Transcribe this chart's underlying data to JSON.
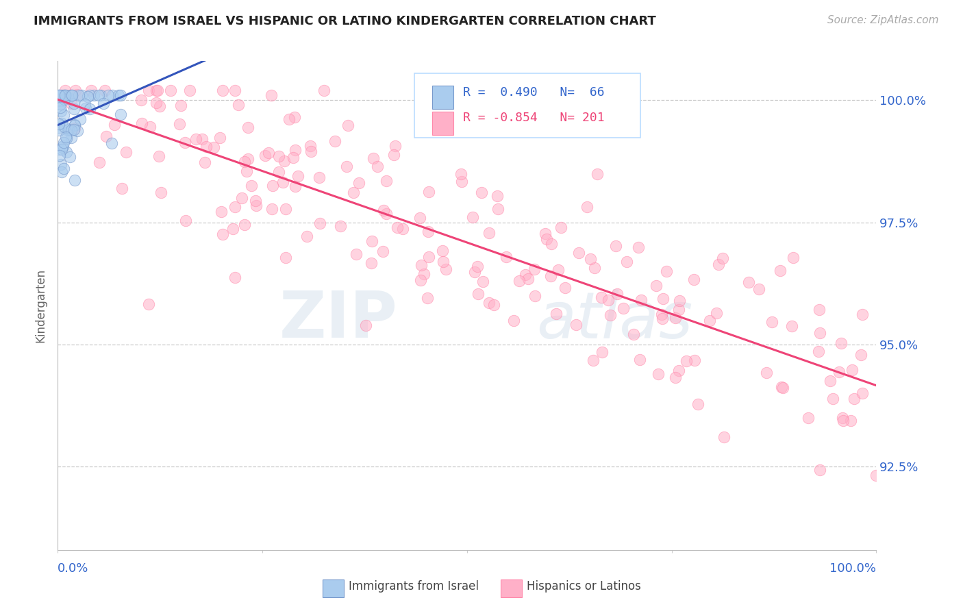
{
  "title": "IMMIGRANTS FROM ISRAEL VS HISPANIC OR LATINO KINDERGARTEN CORRELATION CHART",
  "source": "Source: ZipAtlas.com",
  "ylabel": "Kindergarten",
  "blue_R": 0.49,
  "blue_N": 66,
  "pink_R": -0.854,
  "pink_N": 201,
  "blue_color": "#AACCEE",
  "pink_color": "#FFB0C8",
  "blue_edge_color": "#7799CC",
  "pink_edge_color": "#FF88AA",
  "blue_line_color": "#3355BB",
  "pink_line_color": "#EE4477",
  "label_blue": "Immigrants from Israel",
  "label_pink": "Hispanics or Latinos",
  "watermark_zip": "ZIP",
  "watermark_atlas": "atlas",
  "background_color": "#FFFFFF",
  "title_color": "#222222",
  "source_color": "#AAAAAA",
  "axis_tick_color": "#3366CC",
  "grid_color": "#CCCCCC",
  "y_ticks": [
    0.925,
    0.95,
    0.975,
    1.0
  ],
  "y_tick_labels": [
    "92.5%",
    "95.0%",
    "97.5%",
    "100.0%"
  ],
  "x_lim": [
    0.0,
    1.0
  ],
  "y_lim": [
    0.908,
    1.008
  ]
}
